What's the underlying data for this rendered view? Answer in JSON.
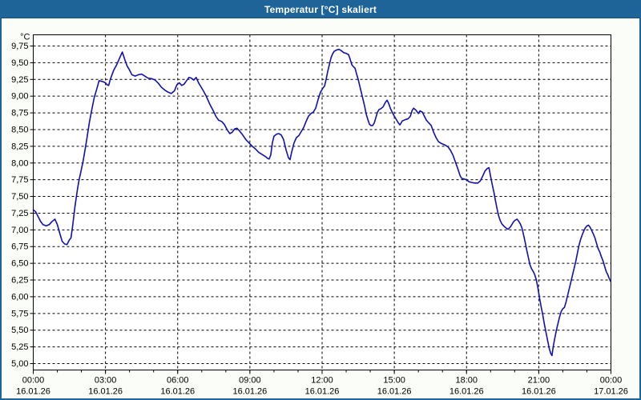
{
  "window": {
    "title": "Temperatur [°C] skaliert"
  },
  "colors": {
    "titlebar": "#1e6498",
    "window_border": "#1e6498",
    "background": "#fbfdf8",
    "plot_background": "#ffffff",
    "grid": "#000000",
    "axis": "#000000",
    "curve": "#1010b4",
    "title_text": "#ffffff",
    "label_text": "#000000"
  },
  "chart_data": {
    "type": "line",
    "title": "Temperatur [°C] skaliert",
    "grid": "dashed",
    "legend": "none",
    "y_axis": {
      "unit": "°C",
      "min": 5.0,
      "max": 9.75,
      "step": 0.25,
      "decimal_separator": ",",
      "labels": [
        "9,75",
        "9,50",
        "9,25",
        "9,00",
        "8,75",
        "8,50",
        "8,25",
        "8,00",
        "7,75",
        "7,50",
        "7,25",
        "7,00",
        "6,75",
        "6,50",
        "6,25",
        "6,00",
        "5,75",
        "5,50",
        "5,25",
        "5,00"
      ]
    },
    "x_axis": {
      "range_hours": [
        0,
        24
      ],
      "minor_tick_hours": 1,
      "major_ticks": [
        {
          "hour": 0,
          "time": "00:00",
          "date": "16.01.26"
        },
        {
          "hour": 3,
          "time": "03:00",
          "date": "16.01.26"
        },
        {
          "hour": 6,
          "time": "06:00",
          "date": "16.01.26"
        },
        {
          "hour": 9,
          "time": "09:00",
          "date": "16.01.26"
        },
        {
          "hour": 12,
          "time": "12:00",
          "date": "16.01.26"
        },
        {
          "hour": 15,
          "time": "15:00",
          "date": "16.01.26"
        },
        {
          "hour": 18,
          "time": "18:00",
          "date": "16.01.26"
        },
        {
          "hour": 21,
          "time": "21:00",
          "date": "16.01.26"
        },
        {
          "hour": 24,
          "time": "00:00",
          "date": "17.01.26"
        }
      ]
    },
    "series": [
      {
        "name": "Temperatur",
        "color": "#1010b4",
        "points_format": [
          "minutes_from_start",
          "celsius"
        ],
        "points": [
          [
            0,
            7.3
          ],
          [
            6,
            7.27
          ],
          [
            12,
            7.2
          ],
          [
            18,
            7.13
          ],
          [
            24,
            7.08
          ],
          [
            32,
            7.06
          ],
          [
            40,
            7.08
          ],
          [
            46,
            7.12
          ],
          [
            54,
            7.16
          ],
          [
            60,
            7.08
          ],
          [
            66,
            6.95
          ],
          [
            72,
            6.83
          ],
          [
            78,
            6.79
          ],
          [
            84,
            6.78
          ],
          [
            90,
            6.85
          ],
          [
            94,
            6.88
          ],
          [
            98,
            7.05
          ],
          [
            104,
            7.35
          ],
          [
            110,
            7.6
          ],
          [
            114,
            7.74
          ],
          [
            118,
            7.85
          ],
          [
            124,
            8.02
          ],
          [
            132,
            8.3
          ],
          [
            140,
            8.61
          ],
          [
            146,
            8.8
          ],
          [
            152,
            8.98
          ],
          [
            158,
            9.1
          ],
          [
            164,
            9.23
          ],
          [
            172,
            9.22
          ],
          [
            180,
            9.2
          ],
          [
            184,
            9.17
          ],
          [
            188,
            9.16
          ],
          [
            192,
            9.25
          ],
          [
            200,
            9.38
          ],
          [
            208,
            9.47
          ],
          [
            216,
            9.58
          ],
          [
            222,
            9.66
          ],
          [
            228,
            9.55
          ],
          [
            234,
            9.45
          ],
          [
            240,
            9.39
          ],
          [
            246,
            9.32
          ],
          [
            254,
            9.3
          ],
          [
            262,
            9.32
          ],
          [
            270,
            9.33
          ],
          [
            278,
            9.3
          ],
          [
            286,
            9.27
          ],
          [
            296,
            9.26
          ],
          [
            304,
            9.24
          ],
          [
            312,
            9.19
          ],
          [
            320,
            9.13
          ],
          [
            328,
            9.09
          ],
          [
            336,
            9.06
          ],
          [
            344,
            9.04
          ],
          [
            352,
            9.08
          ],
          [
            358,
            9.17
          ],
          [
            364,
            9.2
          ],
          [
            370,
            9.16
          ],
          [
            376,
            9.18
          ],
          [
            382,
            9.23
          ],
          [
            388,
            9.28
          ],
          [
            394,
            9.27
          ],
          [
            400,
            9.24
          ],
          [
            406,
            9.28
          ],
          [
            412,
            9.2
          ],
          [
            418,
            9.14
          ],
          [
            424,
            9.08
          ],
          [
            432,
            8.99
          ],
          [
            440,
            8.88
          ],
          [
            448,
            8.79
          ],
          [
            456,
            8.69
          ],
          [
            462,
            8.64
          ],
          [
            470,
            8.62
          ],
          [
            476,
            8.58
          ],
          [
            484,
            8.49
          ],
          [
            490,
            8.44
          ],
          [
            496,
            8.46
          ],
          [
            502,
            8.51
          ],
          [
            508,
            8.52
          ],
          [
            514,
            8.48
          ],
          [
            522,
            8.42
          ],
          [
            530,
            8.35
          ],
          [
            538,
            8.3
          ],
          [
            546,
            8.25
          ],
          [
            554,
            8.21
          ],
          [
            562,
            8.16
          ],
          [
            570,
            8.13
          ],
          [
            578,
            8.1
          ],
          [
            584,
            8.07
          ],
          [
            588,
            8.06
          ],
          [
            592,
            8.12
          ],
          [
            596,
            8.3
          ],
          [
            600,
            8.4
          ],
          [
            606,
            8.43
          ],
          [
            612,
            8.44
          ],
          [
            618,
            8.42
          ],
          [
            624,
            8.35
          ],
          [
            630,
            8.2
          ],
          [
            636,
            8.08
          ],
          [
            640,
            8.05
          ],
          [
            644,
            8.16
          ],
          [
            650,
            8.3
          ],
          [
            656,
            8.38
          ],
          [
            662,
            8.41
          ],
          [
            668,
            8.47
          ],
          [
            674,
            8.53
          ],
          [
            680,
            8.62
          ],
          [
            686,
            8.7
          ],
          [
            692,
            8.74
          ],
          [
            698,
            8.76
          ],
          [
            704,
            8.82
          ],
          [
            710,
            8.95
          ],
          [
            716,
            9.06
          ],
          [
            722,
            9.12
          ],
          [
            726,
            9.15
          ],
          [
            730,
            9.25
          ],
          [
            734,
            9.37
          ],
          [
            738,
            9.47
          ],
          [
            742,
            9.57
          ],
          [
            746,
            9.63
          ],
          [
            750,
            9.67
          ],
          [
            756,
            9.69
          ],
          [
            762,
            9.7
          ],
          [
            768,
            9.68
          ],
          [
            774,
            9.65
          ],
          [
            780,
            9.64
          ],
          [
            786,
            9.62
          ],
          [
            790,
            9.55
          ],
          [
            794,
            9.47
          ],
          [
            798,
            9.44
          ],
          [
            802,
            9.42
          ],
          [
            806,
            9.33
          ],
          [
            810,
            9.25
          ],
          [
            814,
            9.15
          ],
          [
            818,
            9.05
          ],
          [
            822,
            8.95
          ],
          [
            826,
            8.85
          ],
          [
            830,
            8.73
          ],
          [
            834,
            8.65
          ],
          [
            838,
            8.58
          ],
          [
            842,
            8.56
          ],
          [
            846,
            8.56
          ],
          [
            850,
            8.6
          ],
          [
            854,
            8.68
          ],
          [
            858,
            8.76
          ],
          [
            862,
            8.8
          ],
          [
            866,
            8.81
          ],
          [
            872,
            8.84
          ],
          [
            878,
            8.91
          ],
          [
            882,
            8.94
          ],
          [
            886,
            8.89
          ],
          [
            890,
            8.82
          ],
          [
            894,
            8.77
          ],
          [
            898,
            8.72
          ],
          [
            904,
            8.66
          ],
          [
            910,
            8.6
          ],
          [
            914,
            8.57
          ],
          [
            920,
            8.63
          ],
          [
            928,
            8.65
          ],
          [
            934,
            8.66
          ],
          [
            940,
            8.7
          ],
          [
            944,
            8.78
          ],
          [
            948,
            8.82
          ],
          [
            954,
            8.79
          ],
          [
            960,
            8.74
          ],
          [
            964,
            8.78
          ],
          [
            970,
            8.76
          ],
          [
            974,
            8.71
          ],
          [
            980,
            8.64
          ],
          [
            986,
            8.6
          ],
          [
            992,
            8.56
          ],
          [
            998,
            8.46
          ],
          [
            1004,
            8.38
          ],
          [
            1010,
            8.32
          ],
          [
            1018,
            8.29
          ],
          [
            1026,
            8.27
          ],
          [
            1034,
            8.24
          ],
          [
            1040,
            8.19
          ],
          [
            1046,
            8.12
          ],
          [
            1052,
            8.02
          ],
          [
            1058,
            7.92
          ],
          [
            1064,
            7.81
          ],
          [
            1068,
            7.77
          ],
          [
            1074,
            7.76
          ],
          [
            1080,
            7.75
          ],
          [
            1086,
            7.72
          ],
          [
            1092,
            7.71
          ],
          [
            1100,
            7.7
          ],
          [
            1108,
            7.7
          ],
          [
            1114,
            7.73
          ],
          [
            1120,
            7.8
          ],
          [
            1126,
            7.88
          ],
          [
            1132,
            7.92
          ],
          [
            1136,
            7.93
          ],
          [
            1140,
            7.8
          ],
          [
            1144,
            7.68
          ],
          [
            1148,
            7.57
          ],
          [
            1152,
            7.44
          ],
          [
            1156,
            7.32
          ],
          [
            1160,
            7.21
          ],
          [
            1164,
            7.14
          ],
          [
            1168,
            7.09
          ],
          [
            1174,
            7.05
          ],
          [
            1180,
            7.02
          ],
          [
            1184,
            7.01
          ],
          [
            1190,
            7.05
          ],
          [
            1196,
            7.11
          ],
          [
            1200,
            7.14
          ],
          [
            1206,
            7.16
          ],
          [
            1210,
            7.13
          ],
          [
            1214,
            7.09
          ],
          [
            1218,
            7.03
          ],
          [
            1222,
            6.93
          ],
          [
            1226,
            6.82
          ],
          [
            1230,
            6.7
          ],
          [
            1234,
            6.59
          ],
          [
            1238,
            6.48
          ],
          [
            1242,
            6.42
          ],
          [
            1246,
            6.38
          ],
          [
            1250,
            6.33
          ],
          [
            1254,
            6.25
          ],
          [
            1258,
            6.13
          ],
          [
            1262,
            5.98
          ],
          [
            1266,
            5.85
          ],
          [
            1270,
            5.73
          ],
          [
            1274,
            5.59
          ],
          [
            1278,
            5.47
          ],
          [
            1282,
            5.35
          ],
          [
            1286,
            5.23
          ],
          [
            1290,
            5.15
          ],
          [
            1293,
            5.12
          ],
          [
            1296,
            5.25
          ],
          [
            1300,
            5.38
          ],
          [
            1304,
            5.5
          ],
          [
            1308,
            5.6
          ],
          [
            1312,
            5.7
          ],
          [
            1316,
            5.78
          ],
          [
            1320,
            5.82
          ],
          [
            1324,
            5.84
          ],
          [
            1328,
            5.92
          ],
          [
            1332,
            6.02
          ],
          [
            1336,
            6.12
          ],
          [
            1340,
            6.22
          ],
          [
            1344,
            6.32
          ],
          [
            1348,
            6.42
          ],
          [
            1352,
            6.52
          ],
          [
            1356,
            6.64
          ],
          [
            1360,
            6.76
          ],
          [
            1364,
            6.85
          ],
          [
            1368,
            6.92
          ],
          [
            1372,
            6.98
          ],
          [
            1376,
            7.03
          ],
          [
            1380,
            7.06
          ],
          [
            1384,
            7.07
          ],
          [
            1388,
            7.04
          ],
          [
            1392,
            6.99
          ],
          [
            1396,
            6.94
          ],
          [
            1400,
            6.88
          ],
          [
            1404,
            6.8
          ],
          [
            1408,
            6.72
          ],
          [
            1412,
            6.67
          ],
          [
            1416,
            6.6
          ],
          [
            1420,
            6.54
          ],
          [
            1424,
            6.46
          ],
          [
            1428,
            6.38
          ],
          [
            1432,
            6.33
          ],
          [
            1436,
            6.27
          ],
          [
            1439,
            6.23
          ]
        ]
      }
    ]
  }
}
